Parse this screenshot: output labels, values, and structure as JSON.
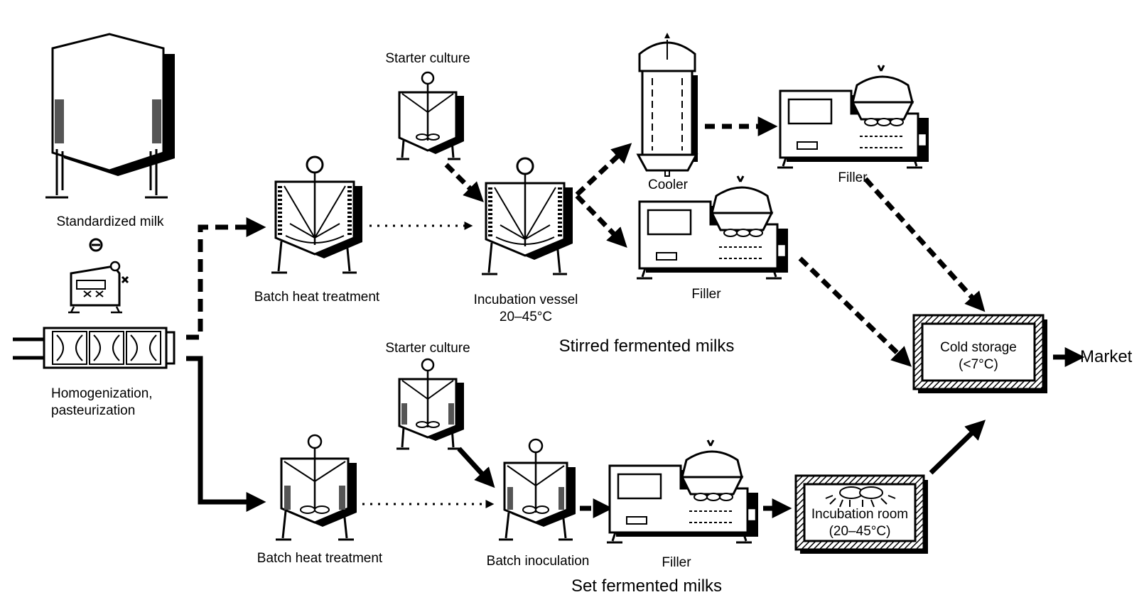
{
  "labels": {
    "standardized_milk": "Standardized milk",
    "homogenization_line1": "Homogenization,",
    "homogenization_line2": "pasteurization",
    "starter_culture_top": "Starter culture",
    "batch_heat_top": "Batch heat treatment",
    "incubation_vessel": "Incubation vessel",
    "incubation_temp": "20–45°C",
    "cooler": "Cooler",
    "filler_top": "Filler",
    "filler_mid": "Filler",
    "stirred_title": "Stirred fermented milks",
    "cold_storage": "Cold storage",
    "cold_storage_temp": "(<7°C)",
    "market": "Market",
    "starter_culture_bottom": "Starter culture",
    "batch_heat_bottom": "Batch heat treatment",
    "batch_inoculation": "Batch inoculation",
    "filler_bottom": "Filler",
    "incubation_room": "Incubation room",
    "incubation_room_temp": "(20–45°C)",
    "set_title": "Set fermented milks"
  }
}
